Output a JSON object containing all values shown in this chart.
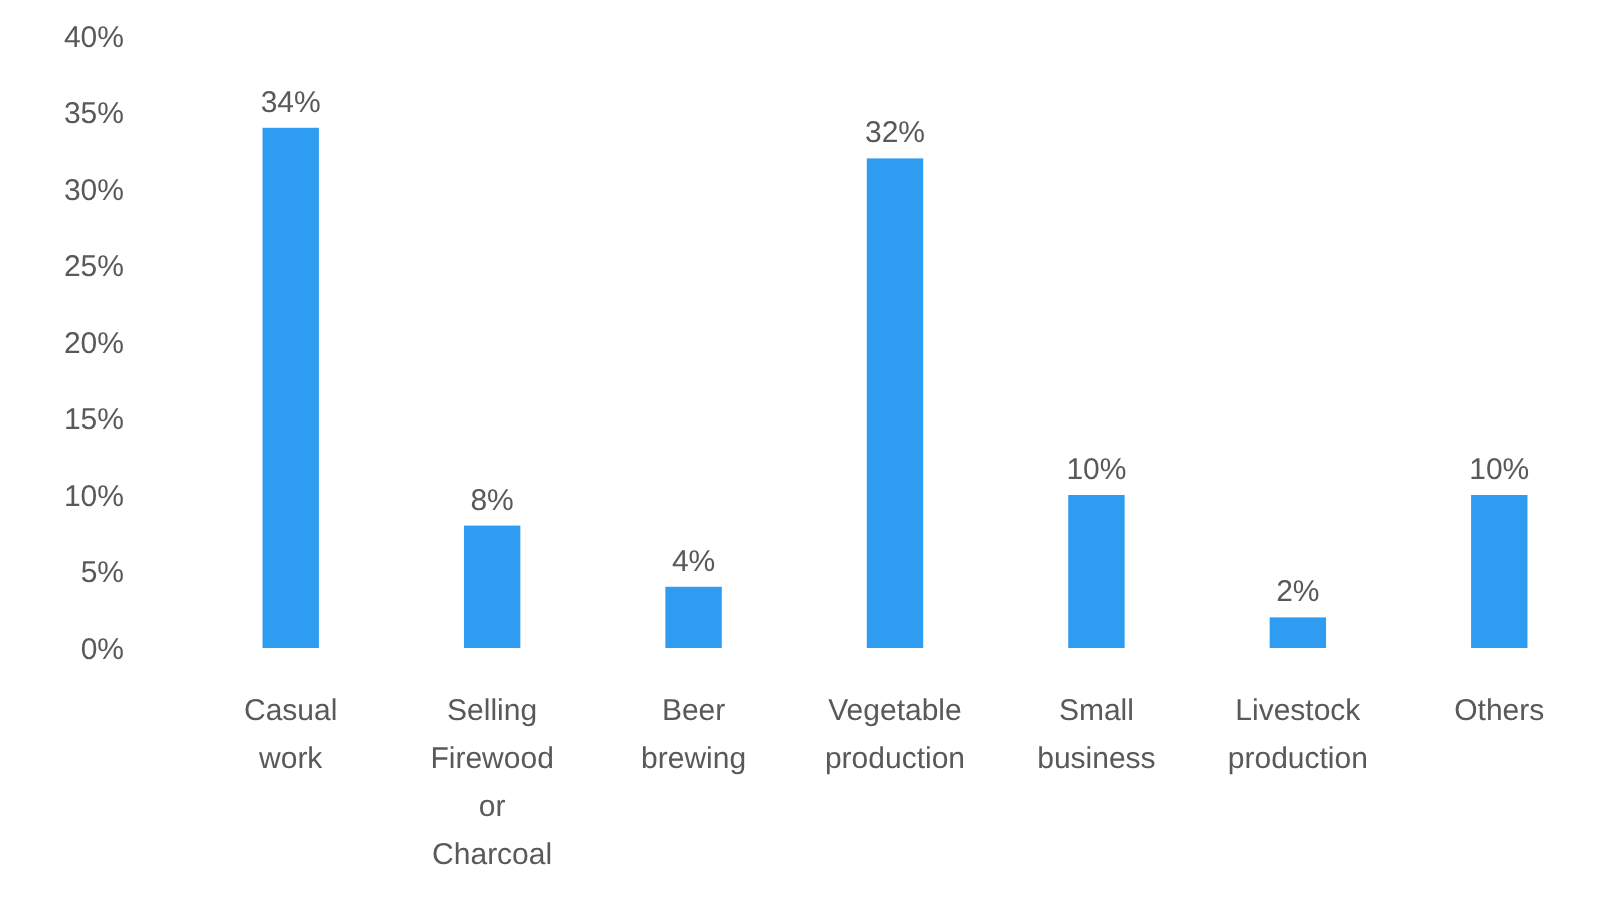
{
  "chart_data": {
    "type": "bar",
    "categories": [
      "Casual work",
      "Selling Firewood or Charcoal",
      "Beer brewing",
      "Vegetable production",
      "Small business",
      "Livestock production",
      "Others"
    ],
    "values": [
      34,
      8,
      4,
      32,
      10,
      2,
      10
    ],
    "value_labels": [
      "34%",
      "8%",
      "4%",
      "32%",
      "10%",
      "2%",
      "10%"
    ],
    "color": "#2e9cf0",
    "ylim": [
      0,
      40
    ],
    "yticks": [
      {
        "value": 0,
        "label": "0%"
      },
      {
        "value": 5,
        "label": "5%"
      },
      {
        "value": 10,
        "label": "10%"
      },
      {
        "value": 15,
        "label": "15%"
      },
      {
        "value": 20,
        "label": "20%"
      },
      {
        "value": 25,
        "label": "25%"
      },
      {
        "value": 30,
        "label": "30%"
      },
      {
        "value": 35,
        "label": "35%"
      },
      {
        "value": 40,
        "label": "40%"
      }
    ]
  }
}
